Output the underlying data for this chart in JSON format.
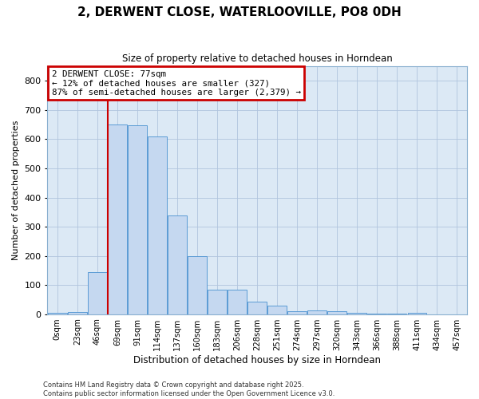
{
  "title": "2, DERWENT CLOSE, WATERLOOVILLE, PO8 0DH",
  "subtitle": "Size of property relative to detached houses in Horndean",
  "xlabel": "Distribution of detached houses by size in Horndean",
  "ylabel": "Number of detached properties",
  "bar_color": "#c5d8f0",
  "bar_edge_color": "#5b9bd5",
  "grid_color": "#b0c4de",
  "background_color": "#dce9f5",
  "categories": [
    "0sqm",
    "23sqm",
    "46sqm",
    "69sqm",
    "91sqm",
    "114sqm",
    "137sqm",
    "160sqm",
    "183sqm",
    "206sqm",
    "228sqm",
    "251sqm",
    "274sqm",
    "297sqm",
    "320sqm",
    "343sqm",
    "366sqm",
    "388sqm",
    "411sqm",
    "434sqm",
    "457sqm"
  ],
  "values": [
    5,
    7,
    145,
    650,
    648,
    610,
    338,
    200,
    83,
    83,
    42,
    28,
    10,
    13,
    10,
    5,
    1,
    1,
    4,
    0,
    0
  ],
  "property_bin_index": 3,
  "annotation_title": "2 DERWENT CLOSE: 77sqm",
  "annotation_line1": "← 12% of detached houses are smaller (327)",
  "annotation_line2": "87% of semi-detached houses are larger (2,379) →",
  "vline_color": "#cc0000",
  "annotation_box_edge_color": "#cc0000",
  "ylim": [
    0,
    850
  ],
  "yticks": [
    0,
    100,
    200,
    300,
    400,
    500,
    600,
    700,
    800
  ],
  "footer_line1": "Contains HM Land Registry data © Crown copyright and database right 2025.",
  "footer_line2": "Contains public sector information licensed under the Open Government Licence v3.0."
}
